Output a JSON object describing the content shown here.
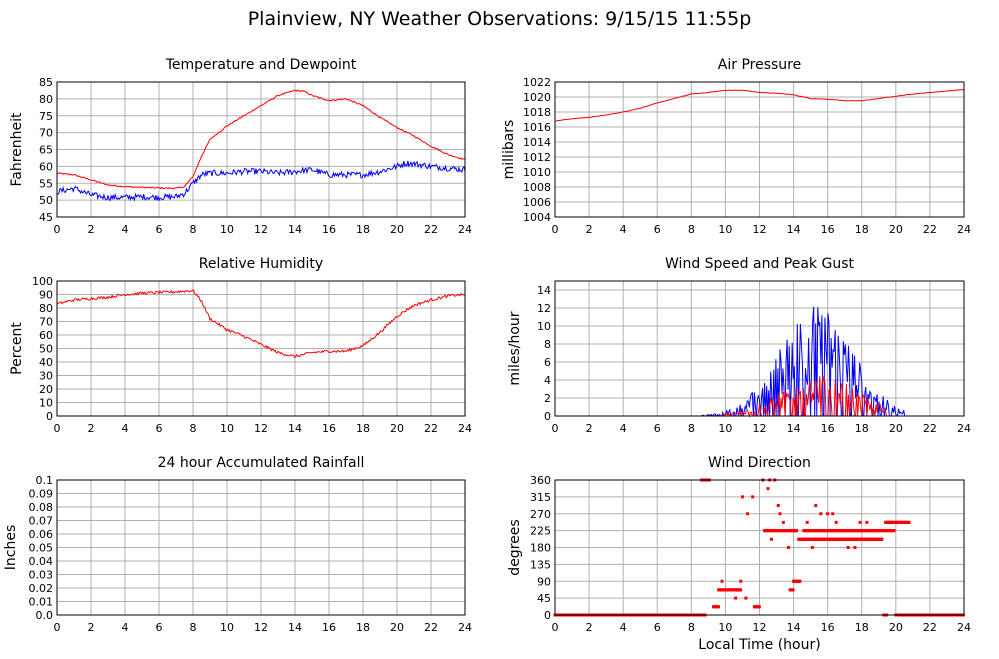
{
  "page": {
    "title": "Plainview, NY Weather Observations: 9/15/15 11:55p",
    "footer_xlabel": "Local Time (hour)"
  },
  "colors": {
    "primary": "#ff0000",
    "secondary": "#0000ff",
    "grid": "#b0b0b0",
    "frame": "#000000"
  },
  "chart_data": [
    {
      "id": "temp",
      "type": "line",
      "title": "Temperature and Dewpoint",
      "xlabel": "",
      "ylabel": "Fahrenheit",
      "xlim": [
        0,
        24
      ],
      "ylim": [
        45,
        85
      ],
      "xticks": [
        0,
        2,
        4,
        6,
        8,
        10,
        12,
        14,
        16,
        18,
        20,
        22,
        24
      ],
      "yticks": [
        45,
        50,
        55,
        60,
        65,
        70,
        75,
        80,
        85
      ],
      "grid": true,
      "series": [
        {
          "color": "#ff0000",
          "noise": 0.2,
          "x": [
            0,
            1,
            2,
            3,
            4,
            5,
            6,
            7,
            7.5,
            8,
            8.5,
            9,
            10,
            11,
            12,
            13,
            14,
            14.5,
            15,
            16,
            17,
            18,
            19,
            20,
            21,
            22,
            23,
            24
          ],
          "y": [
            58,
            57.5,
            56,
            54.5,
            54,
            53.8,
            53.6,
            53.5,
            54,
            57,
            63,
            68,
            72,
            75,
            78,
            81,
            82.5,
            82.3,
            81,
            79.5,
            80,
            78,
            74.5,
            71.5,
            69,
            66,
            63.5,
            62
          ]
        },
        {
          "color": "#0000ff",
          "noise": 0.9,
          "x": [
            0,
            0.5,
            1,
            2,
            3,
            4,
            5,
            6,
            7,
            7.5,
            8,
            8.5,
            9,
            10,
            11,
            12,
            13,
            14,
            15,
            16,
            17,
            18,
            19,
            20,
            20.5,
            21,
            22,
            23,
            24
          ],
          "y": [
            52.5,
            53,
            53.5,
            51.5,
            50.8,
            50.8,
            51,
            50.8,
            51,
            52,
            55,
            57.5,
            58,
            58,
            58.5,
            58.5,
            58,
            58.5,
            59,
            57.5,
            57.5,
            57.5,
            58.5,
            60,
            61,
            60.8,
            60,
            59.5,
            59
          ]
        }
      ]
    },
    {
      "id": "pressure",
      "type": "line",
      "title": "Air Pressure",
      "xlabel": "",
      "ylabel": "millibars",
      "xlim": [
        0,
        24
      ],
      "ylim": [
        1004,
        1022
      ],
      "xticks": [
        0,
        2,
        4,
        6,
        8,
        10,
        12,
        14,
        16,
        18,
        20,
        22,
        24
      ],
      "yticks": [
        1004,
        1006,
        1008,
        1010,
        1012,
        1014,
        1016,
        1018,
        1020,
        1022
      ],
      "grid": true,
      "series": [
        {
          "color": "#ff0000",
          "noise": 0.03,
          "x": [
            0,
            1,
            2,
            3,
            4,
            5,
            6,
            7,
            8,
            9,
            10,
            11,
            12,
            13,
            14,
            15,
            16,
            17,
            18,
            19,
            20,
            21,
            22,
            23,
            24
          ],
          "y": [
            1016.8,
            1017.1,
            1017.3,
            1017.6,
            1018,
            1018.5,
            1019.2,
            1019.8,
            1020.4,
            1020.6,
            1020.9,
            1020.9,
            1020.6,
            1020.5,
            1020.3,
            1019.8,
            1019.7,
            1019.5,
            1019.5,
            1019.8,
            1020.1,
            1020.4,
            1020.6,
            1020.8,
            1021
          ]
        }
      ]
    },
    {
      "id": "humidity",
      "type": "line",
      "title": "Relative Humidity",
      "xlabel": "",
      "ylabel": "Percent",
      "xlim": [
        0,
        24
      ],
      "ylim": [
        0,
        100
      ],
      "xticks": [
        0,
        2,
        4,
        6,
        8,
        10,
        12,
        14,
        16,
        18,
        20,
        22,
        24
      ],
      "yticks": [
        0,
        10,
        20,
        30,
        40,
        50,
        60,
        70,
        80,
        90,
        100
      ],
      "grid": true,
      "series": [
        {
          "color": "#ff0000",
          "noise": 1.0,
          "x": [
            0,
            1,
            2,
            3,
            4,
            5,
            6,
            7,
            7.5,
            8,
            8.5,
            9,
            10,
            11,
            12,
            13,
            14,
            15,
            16,
            17,
            18,
            19,
            20,
            21,
            22,
            23,
            24
          ],
          "y": [
            83,
            86,
            87,
            88,
            90,
            91,
            91.5,
            92,
            92.5,
            93,
            85,
            72,
            64,
            59,
            53,
            47,
            44,
            47,
            48,
            48,
            52,
            62,
            74,
            82,
            86,
            89,
            90
          ]
        }
      ]
    },
    {
      "id": "wind",
      "type": "line",
      "title": "Wind Speed and Peak Gust",
      "xlabel": "",
      "ylabel": "miles/hour",
      "xlim": [
        0,
        24
      ],
      "ylim": [
        0,
        15
      ],
      "xticks": [
        0,
        2,
        4,
        6,
        8,
        10,
        12,
        14,
        16,
        18,
        20,
        22,
        24
      ],
      "yticks": [
        0,
        2,
        4,
        6,
        8,
        10,
        12,
        14
      ],
      "grid": true,
      "series": [
        {
          "color": "#0000ff",
          "spiky": true,
          "peakx": 15.3,
          "peakmax": 11.5,
          "spread": 3.0,
          "active": [
            8.6,
            20.6
          ]
        },
        {
          "color": "#ff0000",
          "spiky": true,
          "peakx": 15.5,
          "peakmax": 4.2,
          "spread": 3.2,
          "active": [
            9.6,
            19.4
          ]
        }
      ]
    },
    {
      "id": "rain",
      "type": "line",
      "title": "24 hour Accumulated Rainfall",
      "xlabel": "",
      "ylabel": "Inches",
      "xlim": [
        0,
        24
      ],
      "ylim": [
        0,
        0.1
      ],
      "xticks": [
        0,
        2,
        4,
        6,
        8,
        10,
        12,
        14,
        16,
        18,
        20,
        22,
        24
      ],
      "yticks": [
        "0.0",
        "0.01",
        "0.02",
        "0.03",
        "0.04",
        "0.05",
        "0.06",
        "0.07",
        "0.08",
        "0.09",
        "0.1"
      ],
      "grid": true,
      "series": [
        {
          "color": "#ff0000",
          "noise": 0,
          "x": [
            0,
            24
          ],
          "y": [
            0,
            0
          ]
        }
      ]
    },
    {
      "id": "direction",
      "type": "scatter",
      "title": "Wind Direction",
      "xlabel": "Local Time (hour)",
      "ylabel": "degrees",
      "xlim": [
        0,
        24
      ],
      "ylim": [
        0,
        360
      ],
      "xticks": [
        0,
        2,
        4,
        6,
        8,
        10,
        12,
        14,
        16,
        18,
        20,
        22,
        24
      ],
      "yticks": [
        0,
        45,
        90,
        135,
        180,
        225,
        270,
        315,
        360
      ],
      "grid": true,
      "series": [
        {
          "color": "#ff0000",
          "segments": [
            [
              0,
              8.8,
              0
            ],
            [
              8.6,
              9.1,
              360
            ],
            [
              9.3,
              9.6,
              22
            ],
            [
              9.6,
              10.9,
              67
            ],
            [
              11.7,
              12.0,
              22
            ],
            [
              13.8,
              14.0,
              67
            ],
            [
              14.0,
              14.4,
              90
            ],
            [
              12.3,
              14.2,
              225
            ],
            [
              14.3,
              19.2,
              202
            ],
            [
              14.6,
              19.9,
              225
            ],
            [
              19.4,
              20.8,
              247
            ],
            [
              20.0,
              24,
              0
            ],
            [
              19.3,
              19.5,
              0
            ]
          ],
          "points": [
            [
              9.8,
              90
            ],
            [
              10.3,
              67
            ],
            [
              10.6,
              45
            ],
            [
              10.9,
              90
            ],
            [
              11.2,
              45
            ],
            [
              11.0,
              315
            ],
            [
              11.3,
              270
            ],
            [
              11.6,
              315
            ],
            [
              12.2,
              360
            ],
            [
              12.6,
              360
            ],
            [
              12.9,
              360
            ],
            [
              12.5,
              337
            ],
            [
              13.1,
              292
            ],
            [
              13.2,
              270
            ],
            [
              13.4,
              247
            ],
            [
              13.7,
              180
            ],
            [
              12.4,
              225
            ],
            [
              12.7,
              202
            ],
            [
              14.8,
              247
            ],
            [
              15.3,
              292
            ],
            [
              15.6,
              270
            ],
            [
              16.0,
              270
            ],
            [
              16.3,
              270
            ],
            [
              16.5,
              247
            ],
            [
              17.2,
              180
            ],
            [
              17.6,
              180
            ],
            [
              18.3,
              247
            ],
            [
              18.7,
              225
            ],
            [
              19.0,
              202
            ],
            [
              15.1,
              180
            ],
            [
              16.7,
              225
            ],
            [
              17.9,
              247
            ]
          ]
        }
      ]
    }
  ]
}
